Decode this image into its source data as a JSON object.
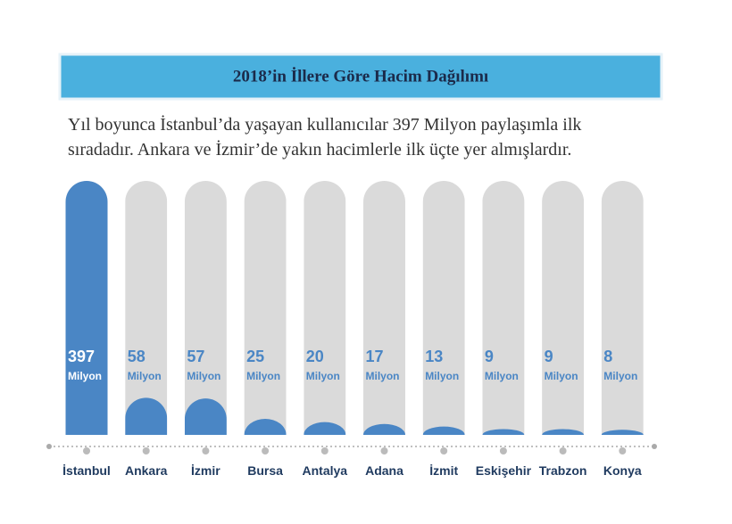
{
  "chart_data": {
    "type": "capsule-bar",
    "title": "2018’in İllere Göre Hacim Dağılımı",
    "subtitle": [
      "Yıl boyunca İstanbul’da yaşayan kullanıcılar 397 Milyon paylaşımla ilk",
      "sıradadır. Ankara ve İzmir’de yakın hacimlerle ilk üçte yer almışlardır."
    ],
    "categories": [
      "İstanbul",
      "Ankara",
      "İzmir",
      "Bursa",
      "Antalya",
      "Adana",
      "İzmit",
      "Eskişehir",
      "Trabzon",
      "Konya"
    ],
    "values": [
      397,
      58,
      57,
      25,
      20,
      17,
      13,
      9,
      9,
      8
    ],
    "unit": "Milyon",
    "color": "#4a86c5",
    "track_color": "#dadada"
  }
}
